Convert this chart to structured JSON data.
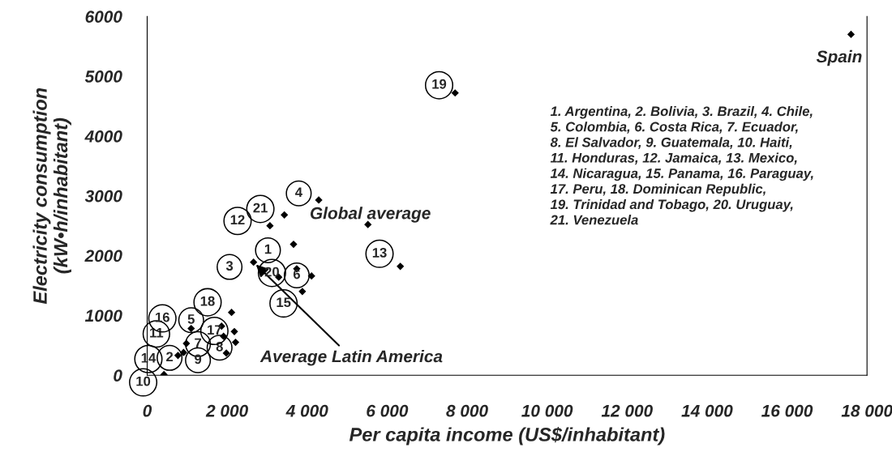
{
  "chart_data": {
    "type": "scatter",
    "xlabel": "Per capita income (US$/inhabitant)",
    "ylabel": "Electricity consumption\n(kW•h/inhabitant)",
    "series": [
      {
        "color": "#000000",
        "x": [
          3070,
          3430,
          4290,
          5520,
          3660,
          2660,
          6330,
          3740,
          4110,
          3290,
          3880,
          2110,
          1100,
          1860,
          2180,
          1910,
          2210,
          980,
          1980,
          910,
          770,
          420,
          7700,
          17600
        ],
        "values": [
          2500,
          2680,
          2930,
          2520,
          2190,
          1890,
          1820,
          1780,
          1660,
          1640,
          1400,
          1050,
          780,
          820,
          730,
          650,
          550,
          530,
          370,
          380,
          330,
          10,
          4720,
          5700
        ]
      }
    ],
    "marker": "diamond",
    "xlim": [
      0,
      18000
    ],
    "ylim": [
      0,
      6000
    ],
    "xticks": [
      0,
      {
        "value": 2000,
        "label": "2 000"
      },
      {
        "value": 4000,
        "label": "4 000"
      },
      {
        "value": 6000,
        "label": "6 000"
      },
      {
        "value": 8000,
        "label": "8 000"
      },
      {
        "value": 10000,
        "label": "10 000"
      },
      {
        "value": 12000,
        "label": "12 000"
      },
      {
        "value": 14000,
        "label": "14 000"
      },
      {
        "value": 16000,
        "label": "16 000"
      },
      {
        "value": 18000,
        "label": "18 000"
      }
    ],
    "yticks": [
      0,
      1000,
      2000,
      3000,
      4000,
      5000,
      6000
    ],
    "grid": false,
    "legend": false,
    "annotations": [
      {
        "text": "Spain",
        "x": 17600,
        "y": 5700
      },
      {
        "text": "Global average",
        "x": 4290,
        "y": 2930
      },
      {
        "text": "Average Latin America",
        "x": 2660,
        "y": 1890
      },
      "1. Argentina, 2. Bolivia, 3. Brazil, 4. Chile,\n5. Colombia, 6. Costa Rica, 7. Ecuador,\n8. El Salvador, 9. Guatemala, 10. Haiti,\n11. Honduras, 12. Jamaica, 13. Mexico,\n14. Nicaragua, 15. Panama, 16. Paraguay,\n17. Peru, 18. Dominican Republic,\n19. Trinidad and Tobago, 20. Uruguay,\n21. Venezuela",
      {
        "text": "1",
        "x": 3020,
        "y": 2090
      },
      {
        "text": "2",
        "x": 560,
        "y": 290
      },
      {
        "text": "3",
        "x": 2060,
        "y": 1810
      },
      {
        "text": "4",
        "x": 3790,
        "y": 3040
      },
      {
        "text": "5",
        "x": 1100,
        "y": 920
      },
      {
        "text": "6",
        "x": 3740,
        "y": 1670
      },
      {
        "text": "7",
        "x": 1270,
        "y": 520
      },
      {
        "text": "8",
        "x": 1810,
        "y": 460
      },
      {
        "text": "9",
        "x": 1270,
        "y": 250
      },
      {
        "text": "10",
        "x": -100,
        "y": -120
      },
      {
        "text": "11",
        "x": 230,
        "y": 690
      },
      {
        "text": "12",
        "x": 2260,
        "y": 2580
      },
      {
        "text": "13",
        "x": 5810,
        "y": 2030
      },
      {
        "text": "14",
        "x": 30,
        "y": 270
      },
      {
        "text": "15",
        "x": 3410,
        "y": 1200
      },
      {
        "text": "16",
        "x": 380,
        "y": 950
      },
      {
        "text": "17",
        "x": 1680,
        "y": 740
      },
      {
        "text": "18",
        "x": 1510,
        "y": 1220
      },
      {
        "text": "19",
        "x": 7300,
        "y": 4850
      },
      {
        "text": "20",
        "x": 3120,
        "y": 1710
      },
      {
        "text": "21",
        "x": 2830,
        "y": 2780
      }
    ]
  }
}
